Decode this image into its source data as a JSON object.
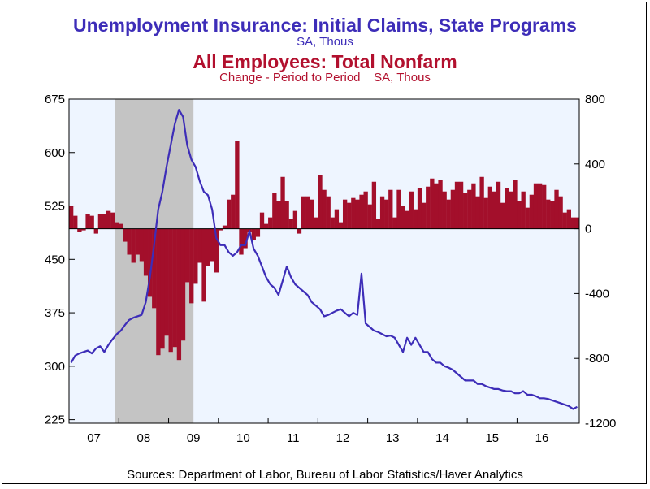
{
  "titles": {
    "line_title": "Unemployment Insurance: Initial Claims, State Programs",
    "line_subtitle": "SA, Thous",
    "bar_title": "All Employees: Total Nonfarm",
    "bar_subtitle": "Change - Period to Period    SA, Thous"
  },
  "source": "Sources:  Department of Labor, Bureau of Labor Statistics/Haver Analytics",
  "colors": {
    "line": "#3d2db8",
    "bars": "#a30f2b",
    "plot_bg": "#eef5ff",
    "recession": "#c4c4c4"
  },
  "chart_data": {
    "type": "line+bar",
    "x_start": "2007-01",
    "x_end": "2017-03",
    "x_tick_labels": [
      "07",
      "08",
      "09",
      "10",
      "11",
      "12",
      "13",
      "14",
      "15",
      "16"
    ],
    "left_axis": {
      "ticks": [
        225,
        300,
        375,
        450,
        525,
        600,
        675
      ],
      "range": [
        220,
        675
      ]
    },
    "right_axis": {
      "ticks": [
        800,
        400,
        0,
        -400,
        -800,
        -1200
      ],
      "range": [
        -1200,
        800
      ]
    },
    "recession_shading": {
      "start": "2007-12",
      "end": "2009-06"
    },
    "series": [
      {
        "name": "Unemployment Insurance: Initial Claims, State Programs",
        "axis": "left",
        "frequency": "monthly average of weekly data",
        "x": [
          "2007-01",
          "2007-02",
          "2007-03",
          "2007-04",
          "2007-05",
          "2007-06",
          "2007-07",
          "2007-08",
          "2007-09",
          "2007-10",
          "2007-11",
          "2007-12",
          "2008-01",
          "2008-02",
          "2008-03",
          "2008-04",
          "2008-05",
          "2008-06",
          "2008-07",
          "2008-08",
          "2008-09",
          "2008-10",
          "2008-11",
          "2008-12",
          "2009-01",
          "2009-02",
          "2009-03",
          "2009-04",
          "2009-05",
          "2009-06",
          "2009-07",
          "2009-08",
          "2009-09",
          "2009-10",
          "2009-11",
          "2009-12",
          "2010-01",
          "2010-02",
          "2010-03",
          "2010-04",
          "2010-05",
          "2010-06",
          "2010-07",
          "2010-08",
          "2010-09",
          "2010-10",
          "2010-11",
          "2010-12",
          "2011-01",
          "2011-02",
          "2011-03",
          "2011-04",
          "2011-05",
          "2011-06",
          "2011-07",
          "2011-08",
          "2011-09",
          "2011-10",
          "2011-11",
          "2011-12",
          "2012-01",
          "2012-02",
          "2012-03",
          "2012-04",
          "2012-05",
          "2012-06",
          "2012-07",
          "2012-08",
          "2012-09",
          "2012-10",
          "2012-11",
          "2012-12",
          "2013-01",
          "2013-02",
          "2013-03",
          "2013-04",
          "2013-05",
          "2013-06",
          "2013-07",
          "2013-08",
          "2013-09",
          "2013-10",
          "2013-11",
          "2013-12",
          "2014-01",
          "2014-02",
          "2014-03",
          "2014-04",
          "2014-05",
          "2014-06",
          "2014-07",
          "2014-08",
          "2014-09",
          "2014-10",
          "2014-11",
          "2014-12",
          "2015-01",
          "2015-02",
          "2015-03",
          "2015-04",
          "2015-05",
          "2015-06",
          "2015-07",
          "2015-08",
          "2015-09",
          "2015-10",
          "2015-11",
          "2015-12",
          "2016-01",
          "2016-02",
          "2016-03",
          "2016-04",
          "2016-05",
          "2016-06",
          "2016-07",
          "2016-08",
          "2016-09",
          "2016-10",
          "2016-11",
          "2016-12",
          "2017-01",
          "2017-02",
          "2017-03"
        ],
        "values": [
          305,
          315,
          318,
          320,
          322,
          318,
          325,
          328,
          320,
          330,
          338,
          345,
          350,
          358,
          365,
          368,
          370,
          372,
          390,
          425,
          470,
          520,
          545,
          580,
          610,
          640,
          660,
          650,
          610,
          590,
          580,
          560,
          545,
          540,
          520,
          480,
          470,
          470,
          460,
          455,
          460,
          470,
          470,
          490,
          465,
          455,
          440,
          425,
          415,
          410,
          400,
          420,
          440,
          425,
          415,
          410,
          405,
          400,
          390,
          385,
          380,
          370,
          372,
          375,
          378,
          380,
          375,
          370,
          375,
          372,
          430,
          360,
          355,
          350,
          348,
          345,
          342,
          343,
          340,
          330,
          320,
          340,
          330,
          340,
          330,
          320,
          320,
          310,
          305,
          305,
          300,
          298,
          295,
          290,
          285,
          280,
          280,
          280,
          275,
          275,
          272,
          270,
          268,
          268,
          266,
          265,
          265,
          262,
          262,
          265,
          260,
          260,
          258,
          255,
          255,
          254,
          252,
          250,
          248,
          246,
          244,
          240,
          243
        ]
      },
      {
        "name": "All Employees: Total Nonfarm",
        "axis": "right",
        "frequency": "monthly change",
        "x": [
          "2007-01",
          "2007-02",
          "2007-03",
          "2007-04",
          "2007-05",
          "2007-06",
          "2007-07",
          "2007-08",
          "2007-09",
          "2007-10",
          "2007-11",
          "2007-12",
          "2008-01",
          "2008-02",
          "2008-03",
          "2008-04",
          "2008-05",
          "2008-06",
          "2008-07",
          "2008-08",
          "2008-09",
          "2008-10",
          "2008-11",
          "2008-12",
          "2009-01",
          "2009-02",
          "2009-03",
          "2009-04",
          "2009-05",
          "2009-06",
          "2009-07",
          "2009-08",
          "2009-09",
          "2009-10",
          "2009-11",
          "2009-12",
          "2010-01",
          "2010-02",
          "2010-03",
          "2010-04",
          "2010-05",
          "2010-06",
          "2010-07",
          "2010-08",
          "2010-09",
          "2010-10",
          "2010-11",
          "2010-12",
          "2011-01",
          "2011-02",
          "2011-03",
          "2011-04",
          "2011-05",
          "2011-06",
          "2011-07",
          "2011-08",
          "2011-09",
          "2011-10",
          "2011-11",
          "2011-12",
          "2012-01",
          "2012-02",
          "2012-03",
          "2012-04",
          "2012-05",
          "2012-06",
          "2012-07",
          "2012-08",
          "2012-09",
          "2012-10",
          "2012-11",
          "2012-12",
          "2013-01",
          "2013-02",
          "2013-03",
          "2013-04",
          "2013-05",
          "2013-06",
          "2013-07",
          "2013-08",
          "2013-09",
          "2013-10",
          "2013-11",
          "2013-12",
          "2014-01",
          "2014-02",
          "2014-03",
          "2014-04",
          "2014-05",
          "2014-06",
          "2014-07",
          "2014-08",
          "2014-09",
          "2014-10",
          "2014-11",
          "2014-12",
          "2015-01",
          "2015-02",
          "2015-03",
          "2015-04",
          "2015-05",
          "2015-06",
          "2015-07",
          "2015-08",
          "2015-09",
          "2015-10",
          "2015-11",
          "2015-12",
          "2016-01",
          "2016-02",
          "2016-03",
          "2016-04",
          "2016-05",
          "2016-06",
          "2016-07",
          "2016-08",
          "2016-09",
          "2016-10",
          "2016-11",
          "2016-12",
          "2017-01",
          "2017-02",
          "2017-03"
        ],
        "values": [
          140,
          80,
          -20,
          -10,
          90,
          80,
          -30,
          90,
          90,
          110,
          100,
          40,
          30,
          -80,
          -160,
          -210,
          -160,
          -200,
          -290,
          -420,
          -490,
          -780,
          -740,
          -660,
          -760,
          -730,
          -810,
          -690,
          -330,
          -460,
          -340,
          -210,
          -450,
          -230,
          -200,
          -270,
          -10,
          20,
          180,
          210,
          540,
          -160,
          -120,
          -20,
          -70,
          -50,
          100,
          30,
          70,
          220,
          170,
          320,
          170,
          60,
          110,
          -30,
          200,
          200,
          180,
          70,
          330,
          240,
          200,
          70,
          120,
          40,
          180,
          160,
          190,
          180,
          210,
          230,
          150,
          290,
          60,
          200,
          180,
          240,
          70,
          240,
          140,
          110,
          230,
          120,
          250,
          160,
          260,
          310,
          280,
          300,
          230,
          180,
          240,
          290,
          290,
          220,
          240,
          280,
          200,
          320,
          190,
          260,
          230,
          290,
          160,
          250,
          230,
          300,
          170,
          230,
          130,
          210,
          280,
          280,
          270,
          180,
          170,
          240,
          200,
          100,
          120,
          70,
          70
        ]
      }
    ]
  }
}
